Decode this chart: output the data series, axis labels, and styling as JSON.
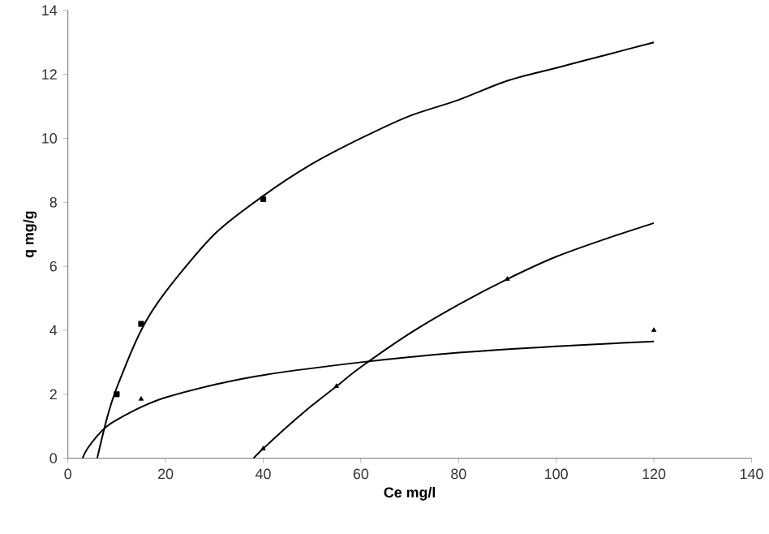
{
  "chart_data": {
    "type": "scatter",
    "xlabel": "Ce mg/l",
    "ylabel": "q mg/g",
    "xlim": [
      0,
      140
    ],
    "ylim": [
      0,
      14
    ],
    "xticks": [
      0,
      20,
      40,
      60,
      80,
      100,
      120,
      140
    ],
    "yticks": [
      0,
      2,
      4,
      6,
      8,
      10,
      12,
      14
    ],
    "series": [
      {
        "marker": "square",
        "color": "#000000",
        "x": [
          10,
          15,
          40
        ],
        "values": [
          2.0,
          4.2,
          8.1
        ]
      },
      {
        "marker": "triangle",
        "color": "#000000",
        "x": [
          15,
          120
        ],
        "values": [
          1.85,
          4.0
        ]
      },
      {
        "marker": "triangle",
        "color": "#000000",
        "x": [
          40,
          55,
          90
        ],
        "values": [
          0.3,
          2.25,
          5.6
        ]
      },
      {
        "type": "line",
        "marker": "none",
        "color": "#000000",
        "x": [
          6,
          8,
          10,
          15,
          20,
          30,
          40,
          50,
          60,
          70,
          80,
          90,
          100,
          110,
          120
        ],
        "values": [
          0,
          1.25,
          2.2,
          4.0,
          5.2,
          7.0,
          8.2,
          9.2,
          10.0,
          10.7,
          11.2,
          11.8,
          12.2,
          12.6,
          13.0
        ]
      },
      {
        "type": "line",
        "marker": "none",
        "color": "#000000",
        "x": [
          3,
          4,
          6,
          8,
          10,
          15,
          20,
          30,
          40,
          60,
          80,
          100,
          120
        ],
        "values": [
          0,
          0.3,
          0.7,
          1.0,
          1.2,
          1.6,
          1.9,
          2.3,
          2.6,
          3.0,
          3.3,
          3.5,
          3.65
        ]
      },
      {
        "type": "line",
        "marker": "none",
        "color": "#000000",
        "x": [
          38,
          40,
          45,
          50,
          55,
          60,
          70,
          80,
          90,
          100,
          110,
          120
        ],
        "values": [
          0,
          0.3,
          1.0,
          1.65,
          2.25,
          2.85,
          3.9,
          4.8,
          5.6,
          6.3,
          6.85,
          7.35
        ]
      }
    ]
  }
}
